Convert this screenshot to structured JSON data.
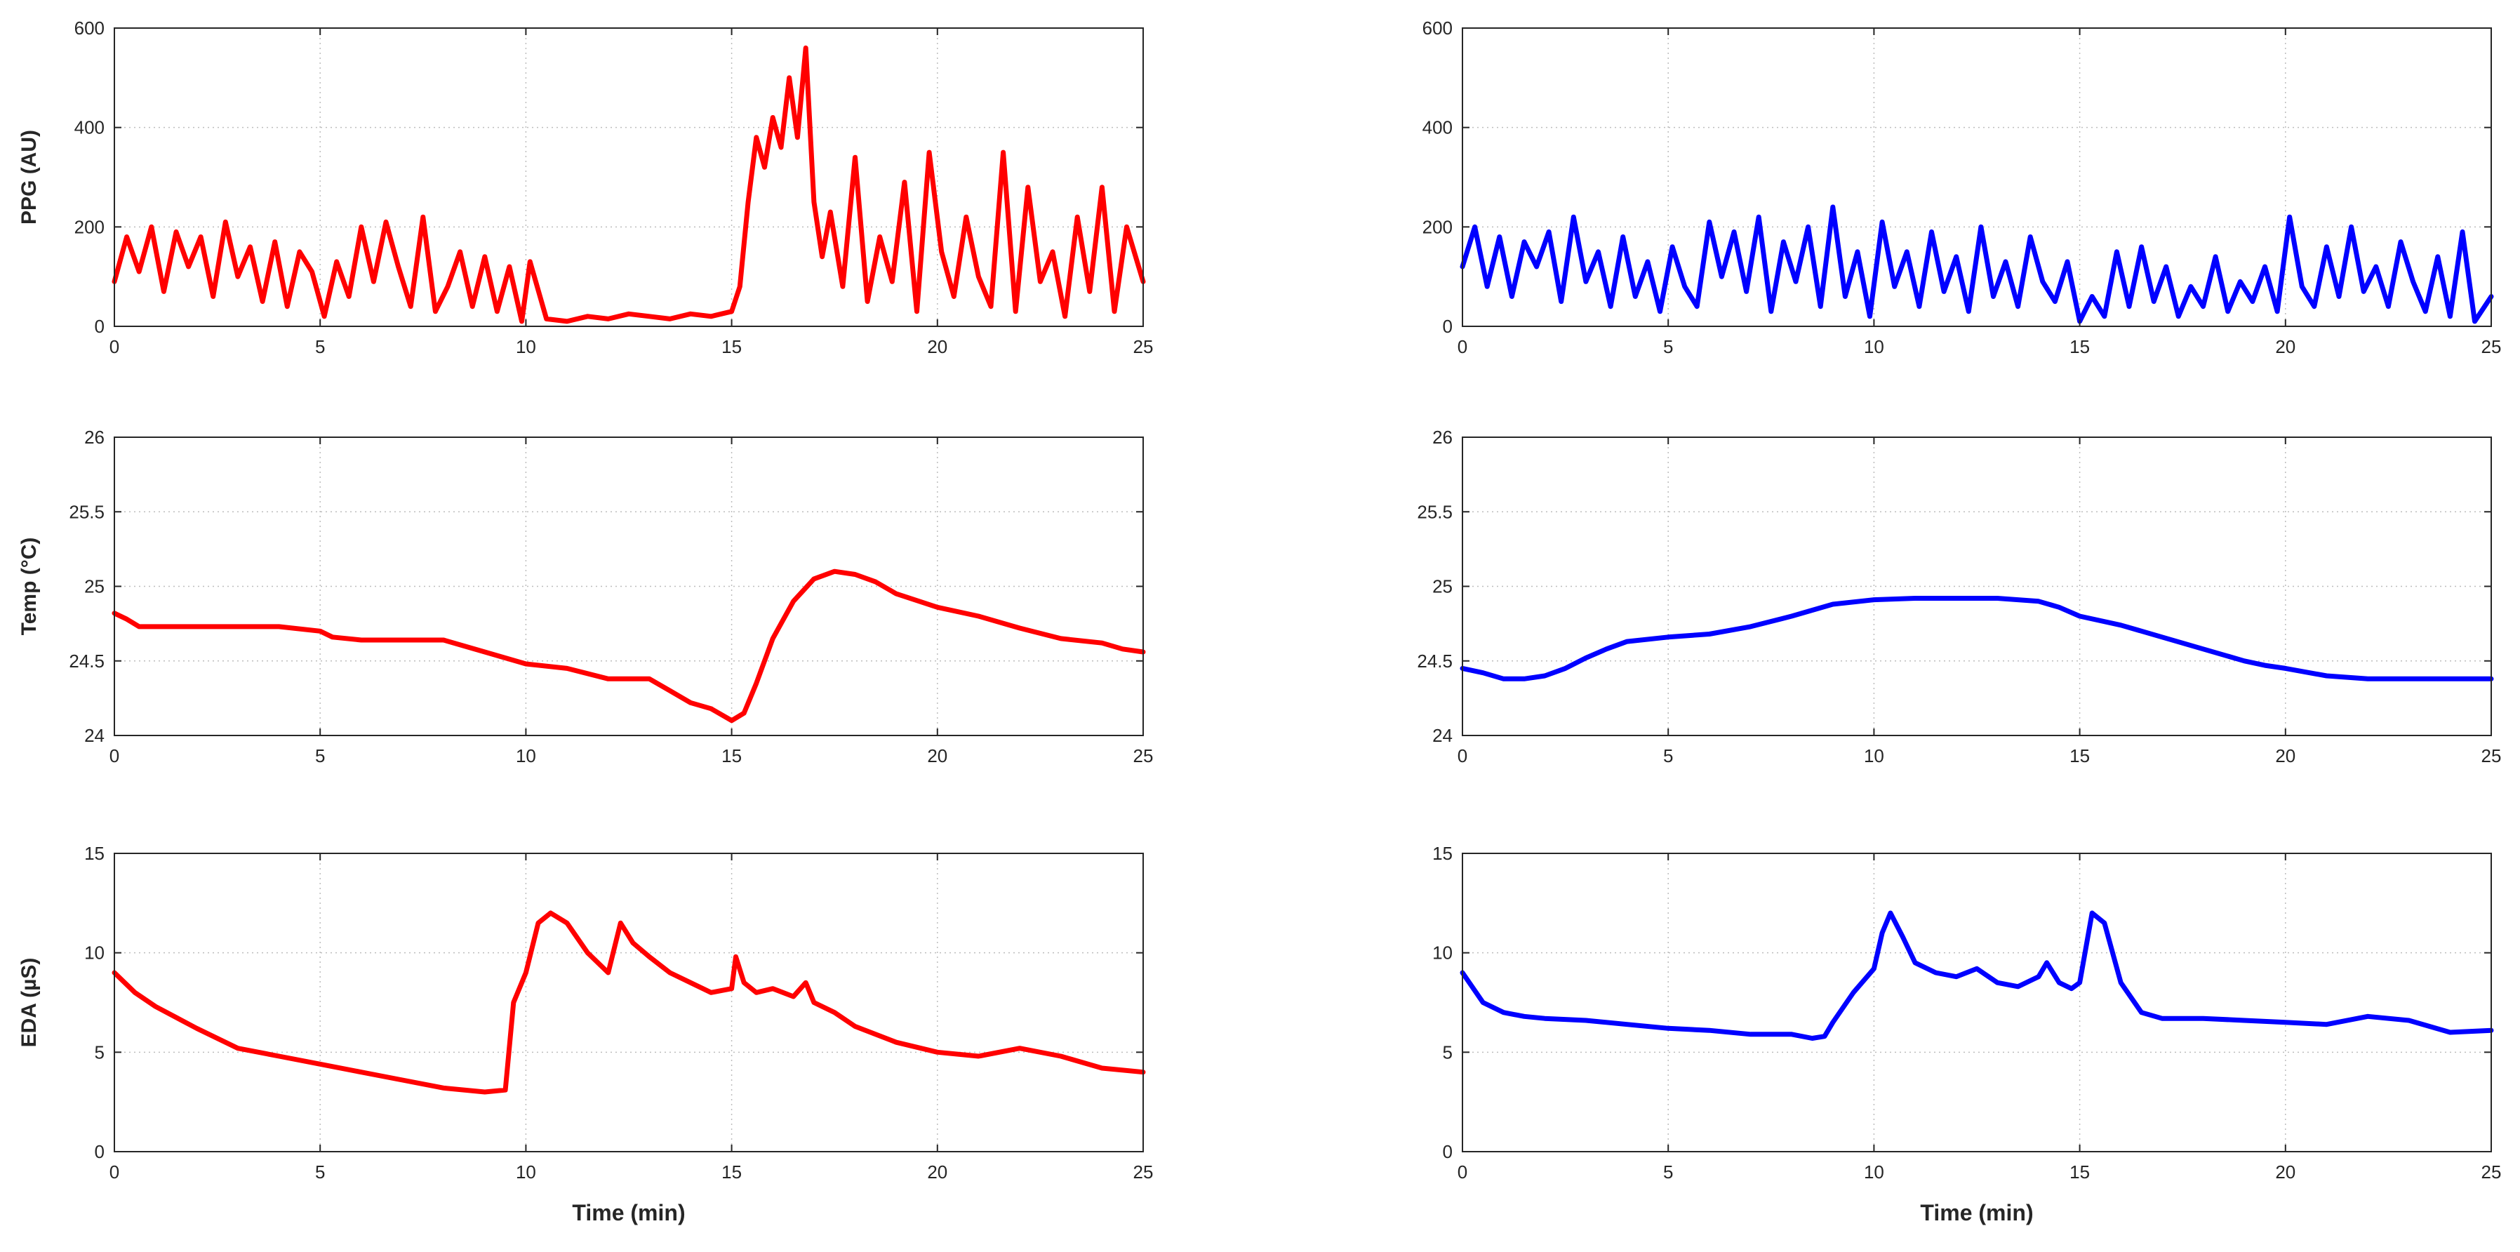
{
  "chart_data": [
    {
      "type": "line",
      "name_id": "ppg-red",
      "color": "#ff0000",
      "ylabel": "PPG (AU)",
      "xlabel": "",
      "xlim": [
        0,
        25
      ],
      "ylim": [
        0,
        600
      ],
      "grid": true,
      "xticks": [
        "0",
        "5",
        "10",
        "15",
        "20",
        "25"
      ],
      "yticks": [
        "0",
        "200",
        "400",
        "600"
      ],
      "x": [
        0,
        0.3,
        0.6,
        0.9,
        1.2,
        1.5,
        1.8,
        2.1,
        2.4,
        2.7,
        3,
        3.3,
        3.6,
        3.9,
        4.2,
        4.5,
        4.8,
        5.1,
        5.4,
        5.7,
        6,
        6.3,
        6.6,
        6.9,
        7.2,
        7.5,
        7.8,
        8.1,
        8.4,
        8.7,
        9,
        9.3,
        9.6,
        9.9,
        10.1,
        10.5,
        11,
        11.5,
        12,
        12.5,
        13,
        13.5,
        14,
        14.5,
        15,
        15.2,
        15.4,
        15.6,
        15.8,
        16,
        16.2,
        16.4,
        16.6,
        16.8,
        17,
        17.2,
        17.4,
        17.7,
        18,
        18.3,
        18.6,
        18.9,
        19.2,
        19.5,
        19.8,
        20.1,
        20.4,
        20.7,
        21,
        21.3,
        21.6,
        21.9,
        22.2,
        22.5,
        22.8,
        23.1,
        23.4,
        23.7,
        24,
        24.3,
        24.6,
        25
      ],
      "y": [
        90,
        180,
        110,
        200,
        70,
        190,
        120,
        180,
        60,
        210,
        100,
        160,
        50,
        170,
        40,
        150,
        110,
        20,
        130,
        60,
        200,
        90,
        210,
        120,
        40,
        220,
        30,
        80,
        150,
        40,
        140,
        30,
        120,
        10,
        130,
        15,
        10,
        20,
        15,
        25,
        20,
        15,
        25,
        20,
        30,
        80,
        250,
        380,
        320,
        420,
        360,
        500,
        380,
        560,
        250,
        140,
        230,
        80,
        340,
        50,
        180,
        90,
        290,
        30,
        350,
        150,
        60,
        220,
        100,
        40,
        350,
        30,
        280,
        90,
        150,
        20,
        220,
        70,
        280,
        30,
        200,
        90
      ]
    },
    {
      "type": "line",
      "name_id": "ppg-blue",
      "color": "#0000ff",
      "ylabel": "",
      "xlabel": "",
      "xlim": [
        0,
        25
      ],
      "ylim": [
        0,
        600
      ],
      "grid": true,
      "xticks": [
        "0",
        "5",
        "10",
        "15",
        "20",
        "25"
      ],
      "yticks": [
        "0",
        "200",
        "400",
        "600"
      ],
      "x": [
        0,
        0.3,
        0.6,
        0.9,
        1.2,
        1.5,
        1.8,
        2.1,
        2.4,
        2.7,
        3,
        3.3,
        3.6,
        3.9,
        4.2,
        4.5,
        4.8,
        5.1,
        5.4,
        5.7,
        6,
        6.3,
        6.6,
        6.9,
        7.2,
        7.5,
        7.8,
        8.1,
        8.4,
        8.7,
        9,
        9.3,
        9.6,
        9.9,
        10.2,
        10.5,
        10.8,
        11.1,
        11.4,
        11.7,
        12,
        12.3,
        12.6,
        12.9,
        13.2,
        13.5,
        13.8,
        14.1,
        14.4,
        14.7,
        15,
        15.3,
        15.6,
        15.9,
        16.2,
        16.5,
        16.8,
        17.1,
        17.4,
        17.7,
        18,
        18.3,
        18.6,
        18.9,
        19.2,
        19.5,
        19.8,
        20.1,
        20.4,
        20.7,
        21,
        21.3,
        21.6,
        21.9,
        22.2,
        22.5,
        22.8,
        23.1,
        23.4,
        23.7,
        24,
        24.3,
        24.6,
        25
      ],
      "y": [
        120,
        200,
        80,
        180,
        60,
        170,
        120,
        190,
        50,
        220,
        90,
        150,
        40,
        180,
        60,
        130,
        30,
        160,
        80,
        40,
        210,
        100,
        190,
        70,
        220,
        30,
        170,
        90,
        200,
        40,
        240,
        60,
        150,
        20,
        210,
        80,
        150,
        40,
        190,
        70,
        140,
        30,
        200,
        60,
        130,
        40,
        180,
        90,
        50,
        130,
        10,
        60,
        20,
        150,
        40,
        160,
        50,
        120,
        20,
        80,
        40,
        140,
        30,
        90,
        50,
        120,
        30,
        220,
        80,
        40,
        160,
        60,
        200,
        70,
        120,
        40,
        170,
        90,
        30,
        140,
        20,
        190,
        10,
        60
      ]
    },
    {
      "type": "line",
      "name_id": "temp-red",
      "color": "#ff0000",
      "ylabel": "Temp (°C)",
      "xlabel": "",
      "xlim": [
        0,
        25
      ],
      "ylim": [
        24,
        26
      ],
      "grid": true,
      "xticks": [
        "0",
        "5",
        "10",
        "15",
        "20",
        "25"
      ],
      "yticks": [
        "24",
        "24.5",
        "25",
        "25.5",
        "26"
      ],
      "x": [
        0,
        0.3,
        0.6,
        1,
        2,
        3,
        4,
        5,
        5.3,
        6,
        7,
        8,
        8.5,
        9,
        10,
        11,
        12,
        13,
        13.5,
        14,
        14.5,
        15,
        15.3,
        15.6,
        16,
        16.5,
        17,
        17.5,
        18,
        18.5,
        19,
        20,
        21,
        22,
        23,
        24,
        24.5,
        25
      ],
      "y": [
        24.82,
        24.78,
        24.73,
        24.73,
        24.73,
        24.73,
        24.73,
        24.7,
        24.66,
        24.64,
        24.64,
        24.64,
        24.6,
        24.56,
        24.48,
        24.45,
        24.38,
        24.38,
        24.3,
        24.22,
        24.18,
        24.1,
        24.15,
        24.35,
        24.65,
        24.9,
        25.05,
        25.1,
        25.08,
        25.03,
        24.95,
        24.86,
        24.8,
        24.72,
        24.65,
        24.62,
        24.58,
        24.56
      ]
    },
    {
      "type": "line",
      "name_id": "temp-blue",
      "color": "#0000ff",
      "ylabel": "",
      "xlabel": "",
      "xlim": [
        0,
        25
      ],
      "ylim": [
        24,
        26
      ],
      "grid": true,
      "xticks": [
        "0",
        "5",
        "10",
        "15",
        "20",
        "25"
      ],
      "yticks": [
        "24",
        "24.5",
        "25",
        "25.5",
        "26"
      ],
      "x": [
        0,
        0.5,
        1,
        1.5,
        2,
        2.5,
        3,
        3.5,
        4,
        5,
        6,
        7,
        8,
        9,
        10,
        11,
        12,
        13,
        14,
        14.5,
        15,
        16,
        17,
        18,
        19,
        19.5,
        20,
        21,
        22,
        23,
        24,
        25
      ],
      "y": [
        24.45,
        24.42,
        24.38,
        24.38,
        24.4,
        24.45,
        24.52,
        24.58,
        24.63,
        24.66,
        24.68,
        24.73,
        24.8,
        24.88,
        24.91,
        24.92,
        24.92,
        24.92,
        24.9,
        24.86,
        24.8,
        24.74,
        24.66,
        24.58,
        24.5,
        24.47,
        24.45,
        24.4,
        24.38,
        24.38,
        24.38,
        24.38
      ]
    },
    {
      "type": "line",
      "name_id": "eda-red",
      "color": "#ff0000",
      "ylabel": "EDA (µS)",
      "xlabel": "Time (min)",
      "xlim": [
        0,
        25
      ],
      "ylim": [
        0,
        15
      ],
      "grid": true,
      "xticks": [
        "0",
        "5",
        "10",
        "15",
        "20",
        "25"
      ],
      "yticks": [
        "0",
        "5",
        "10",
        "15"
      ],
      "x": [
        0,
        0.5,
        1,
        2,
        3,
        4,
        5,
        6,
        7,
        8,
        9,
        9.5,
        9.7,
        10,
        10.3,
        10.6,
        11,
        11.5,
        12,
        12.3,
        12.6,
        13,
        13.5,
        14,
        14.5,
        15,
        15.1,
        15.3,
        15.6,
        16,
        16.5,
        16.8,
        17,
        17.5,
        18,
        19,
        20,
        21,
        22,
        23,
        24,
        25
      ],
      "y": [
        9,
        8,
        7.3,
        6.2,
        5.2,
        4.8,
        4.4,
        4,
        3.6,
        3.2,
        3,
        3.1,
        7.5,
        9,
        11.5,
        12,
        11.5,
        10,
        9,
        11.5,
        10.5,
        9.8,
        9,
        8.5,
        8,
        8.2,
        9.8,
        8.5,
        8,
        8.2,
        7.8,
        8.5,
        7.5,
        7,
        6.3,
        5.5,
        5,
        4.8,
        5.2,
        4.8,
        4.2,
        4
      ]
    },
    {
      "type": "line",
      "name_id": "eda-blue",
      "color": "#0000ff",
      "ylabel": "",
      "xlabel": "Time (min)",
      "xlim": [
        0,
        25
      ],
      "ylim": [
        0,
        15
      ],
      "grid": true,
      "xticks": [
        "0",
        "5",
        "10",
        "15",
        "20",
        "25"
      ],
      "yticks": [
        "0",
        "5",
        "10",
        "15"
      ],
      "x": [
        0,
        0.5,
        1,
        1.5,
        2,
        3,
        4,
        5,
        6,
        7,
        8,
        8.5,
        8.8,
        9,
        9.5,
        10,
        10.2,
        10.4,
        10.7,
        11,
        11.5,
        12,
        12.5,
        13,
        13.5,
        14,
        14.2,
        14.5,
        14.8,
        15,
        15.3,
        15.6,
        16,
        16.5,
        17,
        18,
        19,
        20,
        21,
        22,
        23,
        24,
        25
      ],
      "y": [
        9,
        7.5,
        7,
        6.8,
        6.7,
        6.6,
        6.4,
        6.2,
        6.1,
        5.9,
        5.9,
        5.7,
        5.8,
        6.5,
        8,
        9.2,
        11,
        12,
        10.8,
        9.5,
        9,
        8.8,
        9.2,
        8.5,
        8.3,
        8.8,
        9.5,
        8.5,
        8.2,
        8.5,
        12,
        11.5,
        8.5,
        7,
        6.7,
        6.7,
        6.6,
        6.5,
        6.4,
        6.8,
        6.6,
        6,
        6.1
      ]
    }
  ]
}
